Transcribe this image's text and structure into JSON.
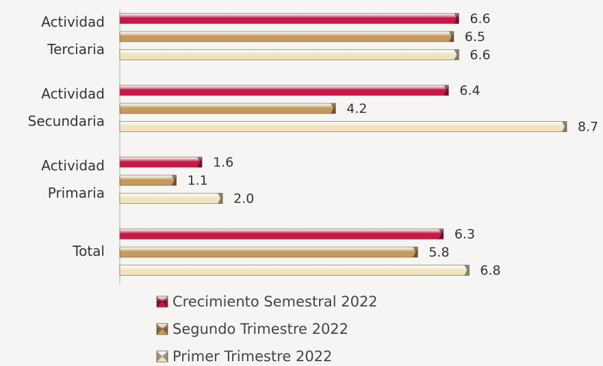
{
  "chart_data": {
    "type": "bar",
    "orientation": "horizontal",
    "categories": [
      [
        "Actividad",
        "Terciaria"
      ],
      [
        "Actividad",
        "Secundaria"
      ],
      [
        "Actividad",
        "Primaria"
      ],
      [
        "Total"
      ]
    ],
    "series": [
      {
        "name": "Crecimiento Semestral 2022",
        "color": "#c8184a",
        "values": [
          6.6,
          6.4,
          1.6,
          6.3
        ],
        "value_labels": [
          "6.6",
          "6.4",
          "1.6",
          "6.3"
        ]
      },
      {
        "name": "Segundo Trimestre 2022",
        "color": "#c59a5c",
        "values": [
          6.5,
          4.2,
          1.1,
          5.8
        ],
        "value_labels": [
          "6.5",
          "4.2",
          "1.1",
          "5.8"
        ]
      },
      {
        "name": "Primer Trimestre 2022",
        "color": "#f1e3c0",
        "values": [
          6.6,
          8.7,
          2.0,
          6.8
        ],
        "value_labels": [
          "6.6",
          "8.7",
          "2.0",
          "6.8"
        ]
      }
    ],
    "xlim": [
      0,
      8.7
    ]
  }
}
